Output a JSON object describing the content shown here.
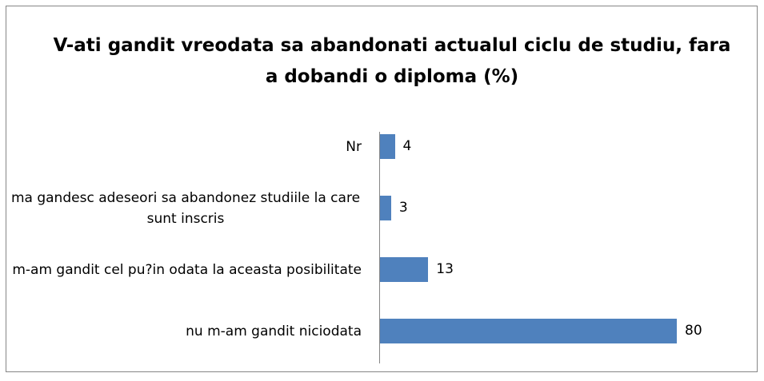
{
  "chart_data": {
    "type": "bar",
    "orientation": "horizontal",
    "title": "V-ati gandit vreodata sa abandonati actualul ciclu de studiu, fara a dobandi o diploma (%)",
    "categories": [
      "Nr",
      "ma gandesc adeseori sa abandonez studiile la care sunt inscris",
      "m-am gandit cel pu?in odata la aceasta posibilitate",
      "nu m-am gandit niciodata"
    ],
    "values": [
      4,
      3,
      13,
      80
    ],
    "color": "#4f81bd"
  }
}
